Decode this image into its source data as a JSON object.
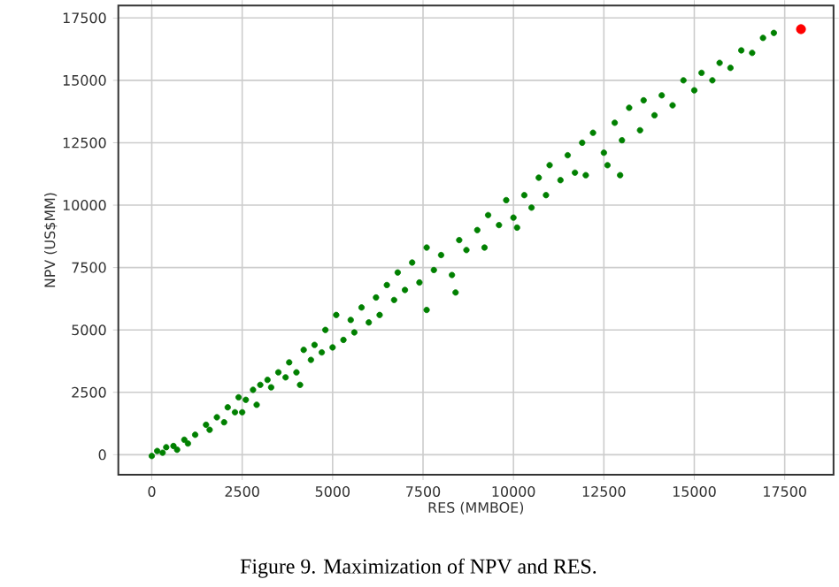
{
  "chart_data": {
    "type": "scatter",
    "xlabel": "RES (MMBOE)",
    "ylabel": "NPV (US$MM)",
    "annotations": [
      "Figure 9. Maximization of NPV and RES."
    ],
    "xlim": [
      -925,
      18850
    ],
    "ylim": [
      -800,
      18000
    ],
    "xticks": [
      0,
      2500,
      5000,
      7500,
      10000,
      12500,
      15000,
      17500
    ],
    "yticks": [
      0,
      2500,
      5000,
      7500,
      10000,
      12500,
      15000,
      17500
    ],
    "grid": true,
    "marker": "circle",
    "series": [
      {
        "color": "#008000",
        "x": [
          0,
          150,
          300,
          400,
          600,
          700,
          900,
          1000,
          1200,
          1500,
          1600,
          1800,
          2000,
          2100,
          2300,
          2400,
          2500,
          2600,
          2800,
          2900,
          3000,
          3200,
          3300,
          3500,
          3700,
          3800,
          4000,
          4100,
          4200,
          4400,
          4500,
          4700,
          4800,
          5000,
          5100,
          5300,
          5500,
          5600,
          5800,
          6000,
          6200,
          6300,
          6500,
          6700,
          6800,
          7000,
          7200,
          7400,
          7600,
          7600,
          7800,
          8000,
          8300,
          8400,
          8500,
          8700,
          9000,
          9200,
          9300,
          9600,
          9800,
          10000,
          10100,
          10300,
          10500,
          10700,
          10900,
          11000,
          11300,
          11500,
          11700,
          11900,
          12000,
          12200,
          12500,
          12600,
          12800,
          12950,
          13000,
          13200,
          13500,
          13600,
          13900,
          14100,
          14400,
          14700,
          15000,
          15200,
          15500,
          15700,
          16000,
          16300,
          16600,
          16900,
          17200
        ],
        "values": [
          -50,
          150,
          80,
          300,
          350,
          200,
          600,
          450,
          800,
          1200,
          1000,
          1500,
          1300,
          1900,
          1700,
          2300,
          1700,
          2200,
          2600,
          2000,
          2800,
          3000,
          2700,
          3300,
          3100,
          3700,
          3300,
          2800,
          4200,
          3800,
          4400,
          4100,
          5000,
          4300,
          5600,
          4600,
          5400,
          4900,
          5900,
          5300,
          6300,
          5600,
          6800,
          6200,
          7300,
          6600,
          7700,
          6900,
          5800,
          8300,
          7400,
          8000,
          7200,
          6500,
          8600,
          8200,
          9000,
          8300,
          9600,
          9200,
          10200,
          9500,
          9100,
          10400,
          9900,
          11100,
          10400,
          11600,
          11000,
          12000,
          11300,
          12500,
          11200,
          12900,
          12100,
          11600,
          13300,
          11200,
          12600,
          13900,
          13000,
          14200,
          13600,
          14400,
          14000,
          15000,
          14600,
          15300,
          15000,
          15700,
          15500,
          16200,
          16100,
          16700,
          16900
        ]
      },
      {
        "color": "#ff0000",
        "x": [
          17950
        ],
        "values": [
          17050
        ]
      }
    ]
  }
}
